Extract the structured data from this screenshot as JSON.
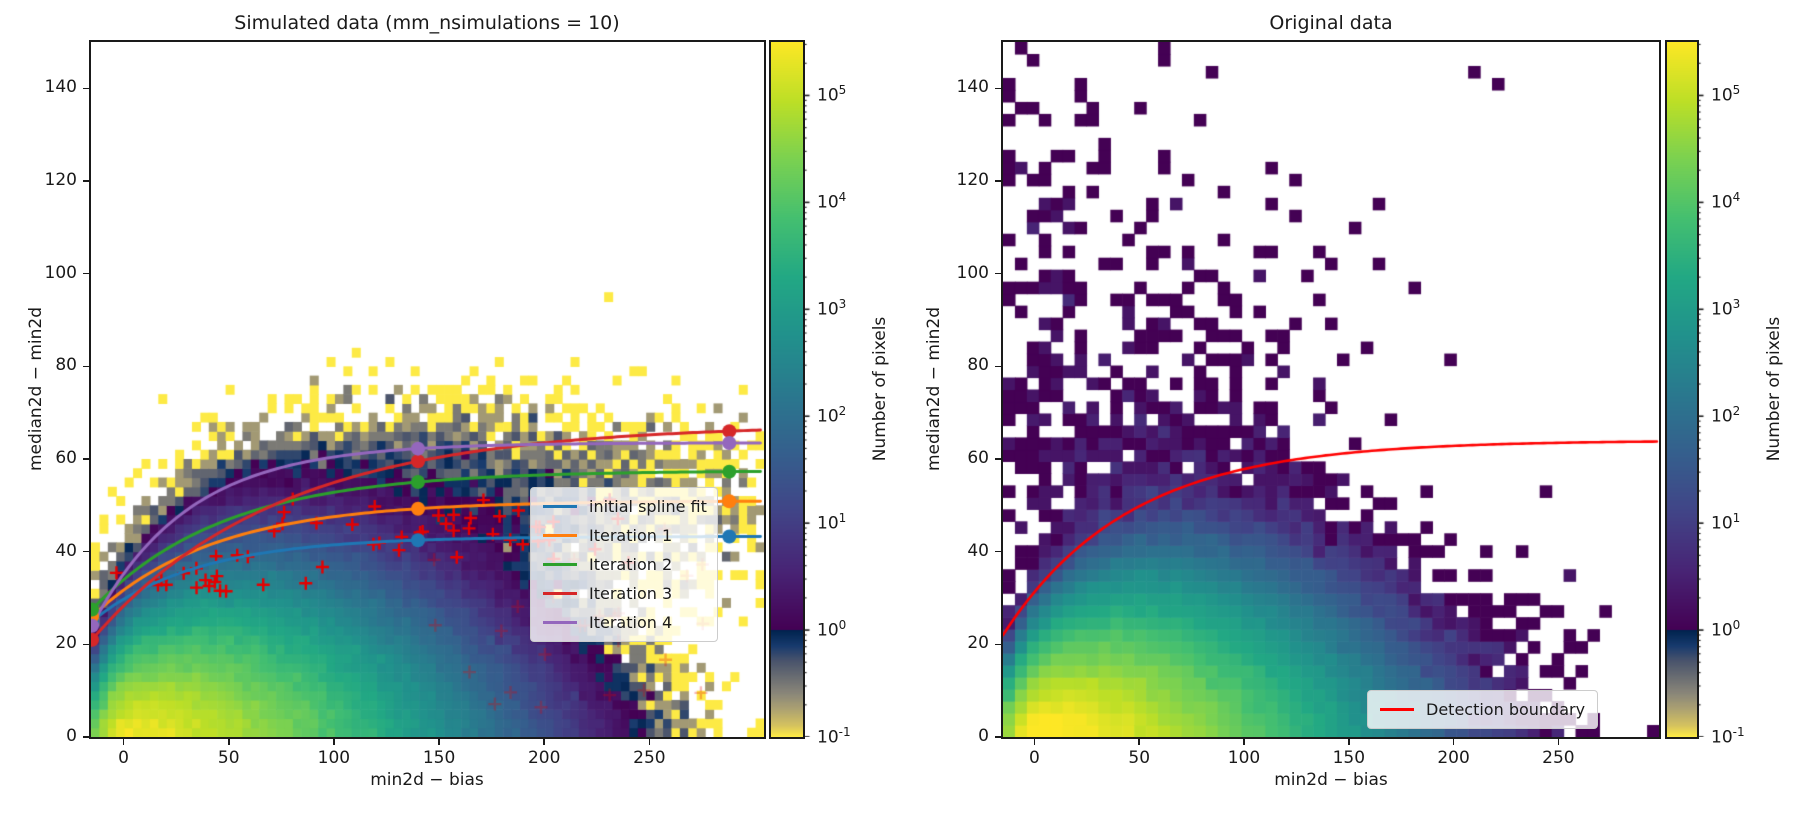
{
  "left_plot": {
    "title": "Simulated data (mm_nsimulations = 10)",
    "xlabel": "min2d − bias",
    "ylabel": "median2d − min2d",
    "x_ticks": [
      0,
      50,
      100,
      150,
      200,
      250
    ],
    "y_ticks": [
      0,
      20,
      40,
      60,
      80,
      100,
      120,
      140
    ],
    "legend": [
      {
        "label": "initial spline fit",
        "color": "#1f77b4"
      },
      {
        "label": "Iteration 1",
        "color": "#ff7f0e"
      },
      {
        "label": "Iteration 2",
        "color": "#2ca02c"
      },
      {
        "label": "Iteration 3",
        "color": "#d62728"
      },
      {
        "label": "Iteration 4",
        "color": "#9467bd"
      }
    ]
  },
  "right_plot": {
    "title": "Original data",
    "xlabel": "min2d − bias",
    "ylabel": "median2d − min2d",
    "x_ticks": [
      0,
      50,
      100,
      150,
      200,
      250
    ],
    "y_ticks": [
      0,
      20,
      40,
      60,
      80,
      100,
      120,
      140
    ],
    "legend": [
      {
        "label": "Detection boundary",
        "color": "#ff0000"
      }
    ]
  },
  "colorbar": {
    "label": "Number of pixels",
    "base": 10,
    "tick_exponents": [
      5,
      4,
      3,
      2,
      1,
      0,
      -1
    ],
    "vmin": 0.1,
    "vmax": 316228,
    "scale": "log",
    "colormap_high": "viridis (values ≥ 1)",
    "colormap_low": "cividis reversed (values < 1)"
  },
  "chart_data": {
    "left": {
      "type": "heatmap",
      "title": "Simulated data (mm_nsimulations = 10)",
      "xlabel": "min2d − bias",
      "ylabel": "median2d − min2d",
      "xlim": [
        -15.5,
        304.5
      ],
      "ylim": [
        0,
        150
      ],
      "grid": false,
      "legend_position": "lower right inside axes",
      "colorbar_label": "Number of pixels",
      "bins": {
        "nx": 80,
        "ny": 75
      },
      "density_model": {
        "peak_count": 250000,
        "x_peak": 3,
        "x_decay_scale": 40,
        "x_decay_power": 1.4,
        "x_left_scale": 11,
        "y_scale_divisor": 4.6,
        "y_scale_min": 4,
        "y_power": 1.5,
        "halo": {
          "amp": 1.1,
          "band_fraction": 0.78,
          "band_width": 16,
          "x_center": 110,
          "x_width": 115
        },
        "n_simulations": 10,
        "seed": 42
      },
      "curves": [
        {
          "name": "initial spline fit",
          "color": "#1f77b4",
          "start_y": 25,
          "asymptote": 43.3,
          "tau": 50
        },
        {
          "name": "Iteration 1",
          "color": "#ff7f0e",
          "start_y": 26,
          "asymptote": 51.0,
          "tau": 58
        },
        {
          "name": "Iteration 2",
          "color": "#2ca02c",
          "start_y": 27.5,
          "asymptote": 57.5,
          "tau": 62
        },
        {
          "name": "Iteration 3",
          "color": "#d62728",
          "start_y": 21,
          "asymptote": 67.5,
          "tau": 88
        },
        {
          "name": "Iteration 4",
          "color": "#9467bd",
          "start_y": 24,
          "asymptote": 63.5,
          "tau": 45
        }
      ],
      "knots_x": [
        -15,
        140,
        288
      ],
      "markers": {
        "crosses": {
          "count": 56,
          "color": "#e50000",
          "seed": 7,
          "band_fraction": [
            0.68,
            0.8
          ],
          "jitter": 4,
          "min_y": 31,
          "x_range": [
            -8,
            244
          ]
        },
        "faint_crosses": {
          "count": 26,
          "color": "#e50000",
          "alpha": 0.28,
          "seed": 11,
          "x_range": [
            135,
            300
          ],
          "y_range": [
            6,
            46
          ]
        }
      }
    },
    "right": {
      "type": "heatmap",
      "title": "Original data",
      "xlabel": "min2d − bias",
      "ylabel": "median2d − min2d",
      "xlim": [
        -15,
        298
      ],
      "ylim": [
        0,
        150
      ],
      "grid": false,
      "legend_position": "lower right inside axes",
      "colorbar_label": "Number of pixels",
      "bins": {
        "nx": 55,
        "ny": 58
      },
      "density_model": {
        "peak_count": 450000,
        "seed": 1234,
        "extra_scatter": [
          {
            "amp": 2.2,
            "cx": 62,
            "sx": 50,
            "cy": 52,
            "sy": 22
          },
          {
            "amp": 0.3,
            "cx": 60,
            "sx": 75,
            "cy": 85,
            "sy": 40
          },
          {
            "amp": 0.18,
            "cx": 30,
            "sx": 110,
            "cy": 0,
            "sy": 60
          },
          {
            "amp": 0.55,
            "cx": 4,
            "sx": 16,
            "cy": 90,
            "sy": 55
          },
          {
            "amp": 0.12,
            "cx": 150,
            "sx": 90,
            "cy": 25,
            "sy": 18
          }
        ]
      },
      "boundary_curve": {
        "label": "Detection boundary",
        "color": "#ff0000",
        "asymptote": 64,
        "drop": 42,
        "tau": 60,
        "start_x": -15,
        "end_x": 298
      }
    }
  }
}
